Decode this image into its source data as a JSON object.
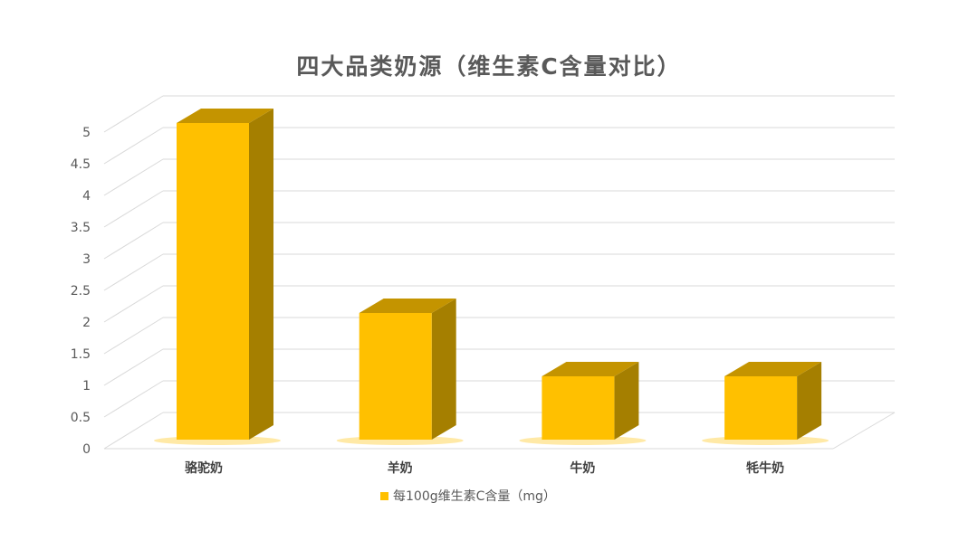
{
  "chart_data": {
    "type": "bar",
    "title": "四大品类奶源（维生素C含量对比）",
    "categories": [
      "骆驼奶",
      "羊奶",
      "牛奶",
      "牦牛奶"
    ],
    "series": [
      {
        "name": "每100g维生素C含量（mg）",
        "values": [
          5,
          2,
          1,
          1
        ]
      }
    ],
    "yticks": [
      "0",
      "0.5",
      "1",
      "1.5",
      "2",
      "2.5",
      "3",
      "3.5",
      "4",
      "4.5",
      "5"
    ],
    "ylim": [
      0,
      5
    ],
    "grid": true,
    "legend": "bottom",
    "style": "3d-column",
    "colors": {
      "front": "#FFC000",
      "top": "#C49400",
      "side": "#A57F00",
      "grid": "#D9D9D9",
      "text": "#595959"
    }
  }
}
